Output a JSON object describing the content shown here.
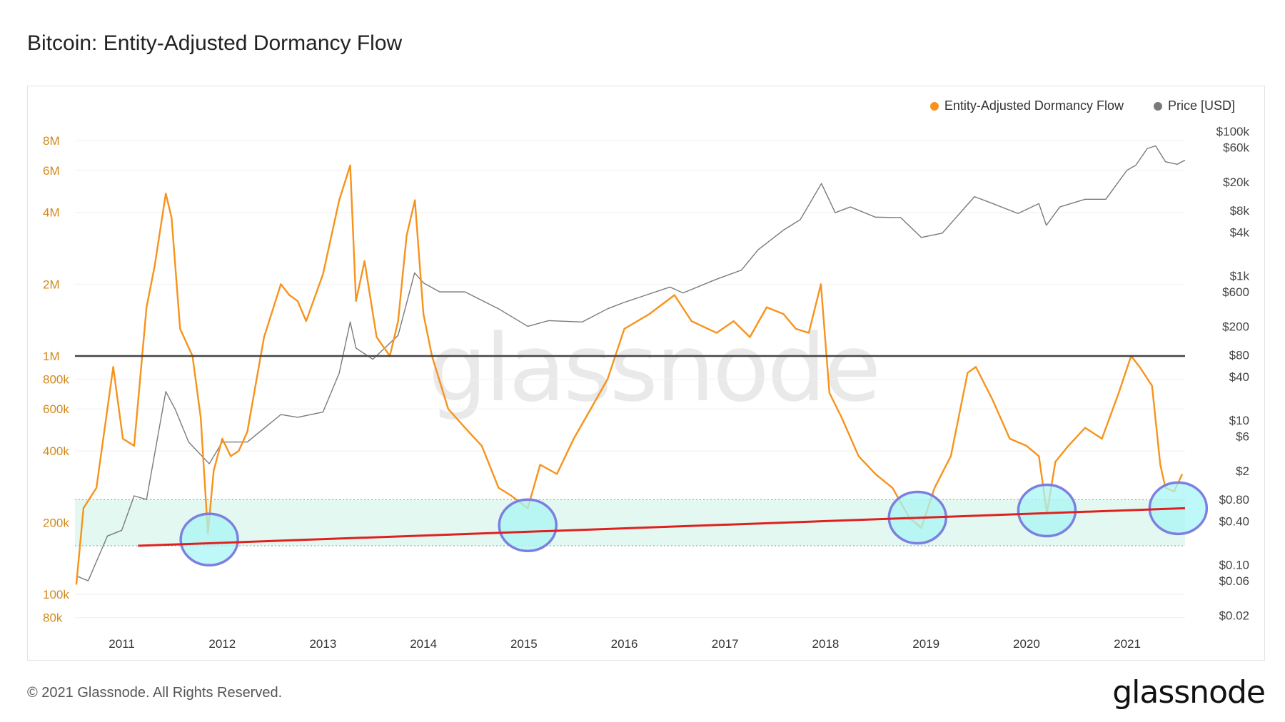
{
  "page": {
    "title": "Bitcoin: Entity-Adjusted Dormancy Flow",
    "copyright": "© 2021 Glassnode. All Rights Reserved.",
    "brand": "glassnode",
    "watermark": "glassnode"
  },
  "colors": {
    "dormancy": "#f7931a",
    "price": "#7a7a7a",
    "threshold": "#444444",
    "trend": "#e02020",
    "band": "#dff7ee",
    "circle_fill": "#aaf5f5",
    "circle_stroke": "#7d7fe0"
  },
  "chart_data": {
    "type": "line",
    "title": "Bitcoin: Entity-Adjusted Dormancy Flow",
    "x_axis": {
      "type": "time",
      "range": [
        "2010-07-15",
        "2021-07-30"
      ],
      "tick_labels": [
        "2011",
        "2012",
        "2013",
        "2014",
        "2015",
        "2016",
        "2017",
        "2018",
        "2019",
        "2020",
        "2021"
      ]
    },
    "y_axis_left": {
      "scale": "log",
      "range": [
        75000,
        9000000
      ],
      "tick_values": [
        80000,
        100000,
        200000,
        400000,
        600000,
        800000,
        1000000,
        2000000,
        4000000,
        6000000,
        8000000
      ],
      "tick_labels": [
        "80k",
        "100k",
        "200k",
        "400k",
        "600k",
        "800k",
        "1M",
        "2M",
        "4M",
        "6M",
        "8M"
      ]
    },
    "y_axis_right": {
      "scale": "log",
      "range": [
        0.015,
        110000
      ],
      "tick_values": [
        0.02,
        0.06,
        0.1,
        0.4,
        0.8,
        2,
        6,
        10,
        40,
        80,
        200,
        600,
        1000,
        4000,
        8000,
        20000,
        60000,
        100000
      ],
      "tick_labels": [
        "$0.02",
        "$0.06",
        "$0.10",
        "$0.40",
        "$0.80",
        "$2",
        "$6",
        "$10",
        "$40",
        "$80",
        "$200",
        "$600",
        "$1k",
        "$4k",
        "$8k",
        "$20k",
        "$60k",
        "$100k"
      ]
    },
    "legend": {
      "placement": "top-right",
      "entries": [
        "Entity-Adjusted Dormancy Flow",
        "Price [USD]"
      ]
    },
    "series": [
      {
        "name": "Entity-Adjusted Dormancy Flow",
        "axis": "left",
        "x": [
          "2010-07-20",
          "2010-08-15",
          "2010-10-01",
          "2010-12-01",
          "2011-01-05",
          "2011-02-15",
          "2011-04-01",
          "2011-05-01",
          "2011-06-10",
          "2011-07-01",
          "2011-08-01",
          "2011-09-15",
          "2011-10-15",
          "2011-11-10",
          "2011-12-01",
          "2012-01-01",
          "2012-02-01",
          "2012-03-01",
          "2012-04-01",
          "2012-06-01",
          "2012-08-01",
          "2012-09-01",
          "2012-10-01",
          "2012-11-01",
          "2013-01-01",
          "2013-03-01",
          "2013-04-10",
          "2013-05-01",
          "2013-06-01",
          "2013-07-15",
          "2013-09-01",
          "2013-10-01",
          "2013-11-01",
          "2013-12-01",
          "2014-01-01",
          "2014-02-01",
          "2014-04-01",
          "2014-06-01",
          "2014-08-01",
          "2014-10-01",
          "2014-11-15",
          "2015-01-15",
          "2015-03-01",
          "2015-05-01",
          "2015-07-01",
          "2015-09-01",
          "2015-11-01",
          "2016-01-01",
          "2016-04-01",
          "2016-07-01",
          "2016-09-01",
          "2016-12-01",
          "2017-02-01",
          "2017-04-01",
          "2017-06-01",
          "2017-08-01",
          "2017-09-15",
          "2017-11-01",
          "2017-12-15",
          "2018-01-15",
          "2018-03-01",
          "2018-05-01",
          "2018-07-01",
          "2018-09-01",
          "2018-11-01",
          "2018-12-15",
          "2019-02-01",
          "2019-04-01",
          "2019-06-01",
          "2019-07-01",
          "2019-09-01",
          "2019-11-01",
          "2020-01-01",
          "2020-02-15",
          "2020-03-15",
          "2020-04-15",
          "2020-06-01",
          "2020-08-01",
          "2020-10-01",
          "2020-12-01",
          "2021-01-15",
          "2021-02-15",
          "2021-04-01",
          "2021-05-01",
          "2021-05-20",
          "2021-06-20",
          "2021-07-20"
        ],
        "values": [
          110000,
          230000,
          280000,
          900000,
          450000,
          420000,
          1600000,
          2400000,
          4800000,
          3800000,
          1300000,
          1000000,
          550000,
          180000,
          330000,
          450000,
          380000,
          400000,
          480000,
          1200000,
          2000000,
          1800000,
          1700000,
          1400000,
          2200000,
          4500000,
          6300000,
          1700000,
          2500000,
          1200000,
          1000000,
          1400000,
          3200000,
          4500000,
          1500000,
          1000000,
          600000,
          500000,
          420000,
          280000,
          260000,
          230000,
          350000,
          320000,
          450000,
          600000,
          800000,
          1300000,
          1500000,
          1800000,
          1400000,
          1250000,
          1400000,
          1200000,
          1600000,
          1500000,
          1300000,
          1250000,
          2000000,
          700000,
          550000,
          380000,
          320000,
          280000,
          210000,
          190000,
          280000,
          380000,
          850000,
          900000,
          650000,
          450000,
          420000,
          380000,
          220000,
          360000,
          420000,
          500000,
          450000,
          700000,
          1000000,
          900000,
          750000,
          350000,
          280000,
          270000,
          320000
        ]
      },
      {
        "name": "Price [USD]",
        "axis": "right",
        "x": [
          "2010-07-20",
          "2010-09-01",
          "2010-11-10",
          "2011-01-01",
          "2011-02-15",
          "2011-04-01",
          "2011-06-10",
          "2011-07-15",
          "2011-09-01",
          "2011-11-15",
          "2012-01-01",
          "2012-04-01",
          "2012-08-01",
          "2012-10-01",
          "2013-01-01",
          "2013-03-01",
          "2013-04-10",
          "2013-05-01",
          "2013-07-01",
          "2013-10-01",
          "2013-11-30",
          "2014-01-01",
          "2014-03-01",
          "2014-06-01",
          "2014-10-01",
          "2015-01-15",
          "2015-04-01",
          "2015-08-01",
          "2015-11-01",
          "2016-01-01",
          "2016-06-15",
          "2016-08-01",
          "2016-12-01",
          "2017-03-01",
          "2017-05-01",
          "2017-08-01",
          "2017-10-01",
          "2017-12-17",
          "2018-02-05",
          "2018-04-01",
          "2018-07-01",
          "2018-10-01",
          "2018-12-15",
          "2019-03-01",
          "2019-06-26",
          "2019-09-01",
          "2019-12-01",
          "2020-02-15",
          "2020-03-13",
          "2020-05-01",
          "2020-08-01",
          "2020-10-15",
          "2020-12-31",
          "2021-02-01",
          "2021-03-15",
          "2021-04-14",
          "2021-05-20",
          "2021-07-01",
          "2021-07-30"
        ],
        "values": [
          0.07,
          0.06,
          0.25,
          0.3,
          0.9,
          0.8,
          25,
          14,
          5,
          2.5,
          5,
          5,
          12,
          11,
          13,
          45,
          230,
          100,
          70,
          150,
          1100,
          800,
          600,
          600,
          350,
          200,
          240,
          230,
          350,
          430,
          700,
          580,
          900,
          1200,
          2300,
          4300,
          6000,
          19000,
          7500,
          9000,
          6500,
          6400,
          3400,
          3900,
          12500,
          10000,
          7300,
          10000,
          5000,
          9000,
          11500,
          11500,
          29000,
          34000,
          58000,
          63000,
          38000,
          35000,
          40000
        ]
      }
    ],
    "threshold_line": {
      "value": 1000000,
      "axis": "left"
    },
    "support_band": {
      "lower": 160000,
      "upper": 250000,
      "axis": "left",
      "x_range": [
        "2010-07-15",
        "2021-07-30"
      ]
    },
    "trend_line": {
      "start": {
        "x": "2011-03-01",
        "y": 160000
      },
      "end": {
        "x": "2021-07-30",
        "y": 230000
      },
      "axis": "left"
    },
    "highlight_circles": [
      {
        "x": "2011-11-15",
        "y": 170000
      },
      {
        "x": "2015-01-15",
        "y": 195000
      },
      {
        "x": "2018-12-01",
        "y": 210000
      },
      {
        "x": "2020-03-15",
        "y": 225000
      },
      {
        "x": "2021-07-05",
        "y": 230000
      }
    ]
  }
}
